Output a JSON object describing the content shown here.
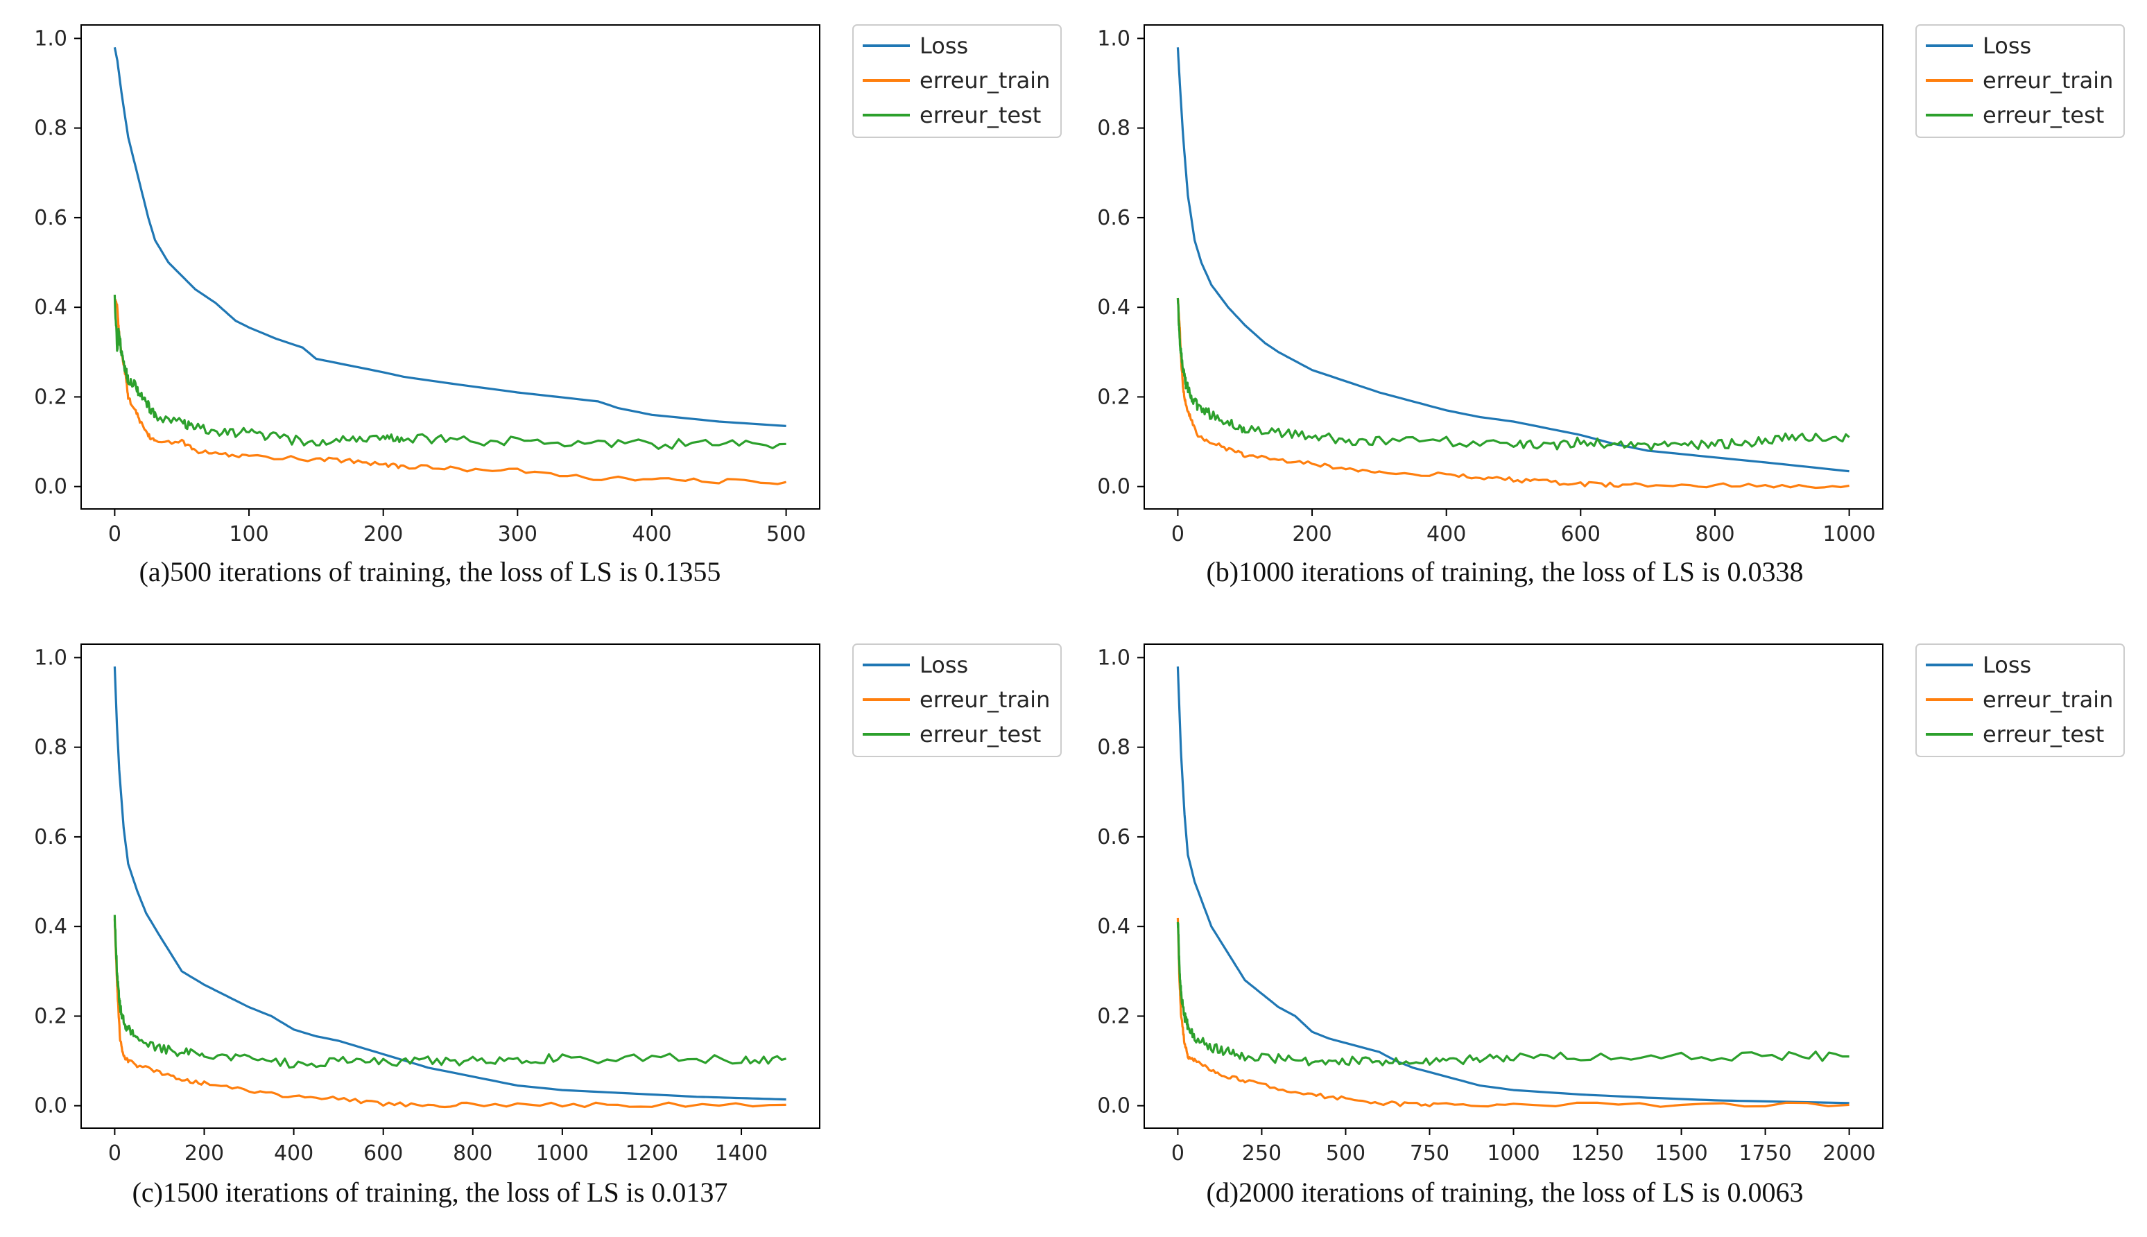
{
  "colors": {
    "loss": "#1f77b4",
    "erreur_train": "#ff7f0e",
    "erreur_test": "#2ca02c",
    "axes": "#000000",
    "legend_border": "#cccccc"
  },
  "legend_placement": "outside-top-right",
  "chart_data": [
    {
      "type": "line",
      "caption": "(a)500 iterations of training, the loss of LS is 0.1355",
      "xlim": [
        -25,
        525
      ],
      "ylim": [
        -0.05,
        1.03
      ],
      "xticks": [
        0,
        100,
        200,
        300,
        400,
        500
      ],
      "yticks": [
        0.0,
        0.2,
        0.4,
        0.6,
        0.8,
        1.0
      ],
      "grid": false,
      "series": [
        {
          "name": "Loss",
          "x": [
            0,
            2,
            5,
            10,
            15,
            20,
            25,
            30,
            40,
            50,
            60,
            75,
            90,
            100,
            120,
            140,
            150,
            175,
            200,
            215,
            250,
            300,
            330,
            360,
            375,
            400,
            450,
            500
          ],
          "y": [
            0.98,
            0.95,
            0.88,
            0.78,
            0.72,
            0.66,
            0.6,
            0.55,
            0.5,
            0.47,
            0.44,
            0.41,
            0.37,
            0.355,
            0.33,
            0.31,
            0.285,
            0.27,
            0.255,
            0.245,
            0.23,
            0.21,
            0.2,
            0.19,
            0.175,
            0.16,
            0.145,
            0.135
          ]
        },
        {
          "name": "erreur_train",
          "x": [
            0,
            2,
            3,
            5,
            8,
            10,
            15,
            20,
            25,
            30,
            50,
            60,
            80,
            100,
            150,
            175,
            200,
            215,
            250,
            300,
            350,
            400,
            450,
            500
          ],
          "y": [
            0.42,
            0.4,
            0.35,
            0.3,
            0.25,
            0.2,
            0.17,
            0.14,
            0.115,
            0.1,
            0.1,
            0.08,
            0.07,
            0.068,
            0.06,
            0.058,
            0.05,
            0.045,
            0.04,
            0.035,
            0.02,
            0.015,
            0.012,
            0.01
          ]
        },
        {
          "name": "erreur_test",
          "x": [
            0,
            2,
            3,
            5,
            8,
            10,
            15,
            20,
            25,
            30,
            50,
            60,
            80,
            100,
            120,
            150,
            175,
            200,
            215,
            250,
            300,
            350,
            400,
            450,
            500
          ],
          "y": [
            0.42,
            0.3,
            0.35,
            0.3,
            0.26,
            0.24,
            0.23,
            0.2,
            0.18,
            0.16,
            0.14,
            0.13,
            0.12,
            0.12,
            0.11,
            0.095,
            0.11,
            0.105,
            0.11,
            0.105,
            0.1,
            0.1,
            0.095,
            0.095,
            0.095
          ]
        }
      ]
    },
    {
      "type": "line",
      "caption": "(b)1000 iterations of training, the loss of LS is 0.0338",
      "xlim": [
        -50,
        1050
      ],
      "ylim": [
        -0.05,
        1.03
      ],
      "xticks": [
        0,
        200,
        400,
        600,
        800,
        1000
      ],
      "yticks": [
        0.0,
        0.2,
        0.4,
        0.6,
        0.8,
        1.0
      ],
      "grid": false,
      "series": [
        {
          "name": "Loss",
          "x": [
            0,
            3,
            8,
            15,
            25,
            35,
            50,
            75,
            100,
            130,
            150,
            175,
            200,
            250,
            300,
            350,
            400,
            450,
            500,
            550,
            600,
            650,
            700,
            800,
            900,
            1000
          ],
          "y": [
            0.98,
            0.9,
            0.78,
            0.65,
            0.55,
            0.5,
            0.45,
            0.4,
            0.36,
            0.32,
            0.3,
            0.28,
            0.26,
            0.235,
            0.21,
            0.19,
            0.17,
            0.155,
            0.145,
            0.13,
            0.115,
            0.095,
            0.08,
            0.065,
            0.05,
            0.034
          ]
        },
        {
          "name": "erreur_train",
          "x": [
            0,
            3,
            5,
            8,
            12,
            20,
            30,
            50,
            80,
            100,
            150,
            200,
            250,
            300,
            400,
            450,
            500,
            550,
            600,
            650,
            700,
            800,
            900,
            1000
          ],
          "y": [
            0.42,
            0.35,
            0.28,
            0.22,
            0.18,
            0.15,
            0.11,
            0.1,
            0.08,
            0.07,
            0.06,
            0.05,
            0.04,
            0.035,
            0.025,
            0.02,
            0.015,
            0.01,
            0.005,
            0.004,
            0.003,
            0.002,
            0.002,
            0.002
          ]
        },
        {
          "name": "erreur_test",
          "x": [
            0,
            3,
            5,
            8,
            12,
            20,
            30,
            50,
            80,
            100,
            150,
            200,
            250,
            300,
            400,
            500,
            550,
            600,
            650,
            700,
            750,
            800,
            850,
            900,
            950,
            1000
          ],
          "y": [
            0.42,
            0.32,
            0.3,
            0.26,
            0.23,
            0.2,
            0.18,
            0.16,
            0.14,
            0.13,
            0.12,
            0.11,
            0.105,
            0.1,
            0.1,
            0.095,
            0.09,
            0.1,
            0.095,
            0.09,
            0.09,
            0.095,
            0.095,
            0.11,
            0.11,
            0.11
          ]
        }
      ]
    },
    {
      "type": "line",
      "caption": "(c)1500 iterations of training, the loss of LS is 0.0137",
      "xlim": [
        -75,
        1575
      ],
      "ylim": [
        -0.05,
        1.03
      ],
      "xticks": [
        0,
        200,
        400,
        600,
        800,
        1000,
        1200,
        1400
      ],
      "yticks": [
        0.0,
        0.2,
        0.4,
        0.6,
        0.8,
        1.0
      ],
      "grid": false,
      "series": [
        {
          "name": "Loss",
          "x": [
            0,
            5,
            10,
            20,
            30,
            50,
            70,
            100,
            150,
            200,
            250,
            300,
            350,
            400,
            450,
            500,
            550,
            600,
            700,
            800,
            900,
            1000,
            1100,
            1200,
            1300,
            1400,
            1500
          ],
          "y": [
            0.98,
            0.85,
            0.75,
            0.62,
            0.54,
            0.48,
            0.43,
            0.38,
            0.3,
            0.27,
            0.245,
            0.22,
            0.2,
            0.17,
            0.155,
            0.145,
            0.13,
            0.115,
            0.085,
            0.065,
            0.045,
            0.035,
            0.03,
            0.025,
            0.02,
            0.017,
            0.014
          ]
        },
        {
          "name": "erreur_train",
          "x": [
            0,
            5,
            8,
            12,
            20,
            30,
            50,
            100,
            150,
            200,
            300,
            400,
            500,
            600,
            700,
            800,
            1000,
            1200,
            1500
          ],
          "y": [
            0.42,
            0.28,
            0.22,
            0.15,
            0.11,
            0.1,
            0.09,
            0.075,
            0.06,
            0.05,
            0.035,
            0.02,
            0.015,
            0.005,
            0.002,
            0.002,
            0.002,
            0.002,
            0.002
          ]
        },
        {
          "name": "erreur_test",
          "x": [
            0,
            5,
            8,
            12,
            20,
            30,
            50,
            100,
            150,
            200,
            300,
            400,
            500,
            600,
            700,
            800,
            900,
            1000,
            1200,
            1400,
            1500
          ],
          "y": [
            0.42,
            0.3,
            0.26,
            0.22,
            0.19,
            0.17,
            0.15,
            0.13,
            0.12,
            0.11,
            0.105,
            0.095,
            0.1,
            0.095,
            0.1,
            0.1,
            0.105,
            0.105,
            0.105,
            0.105,
            0.105
          ]
        }
      ]
    },
    {
      "type": "line",
      "caption": "(d)2000 iterations of training, the loss of LS is 0.0063",
      "xlim": [
        -100,
        2100
      ],
      "ylim": [
        -0.05,
        1.03
      ],
      "xticks": [
        0,
        250,
        500,
        750,
        1000,
        1250,
        1500,
        1750,
        2000
      ],
      "yticks": [
        0.0,
        0.2,
        0.4,
        0.6,
        0.8,
        1.0
      ],
      "grid": false,
      "series": [
        {
          "name": "Loss",
          "x": [
            0,
            5,
            10,
            20,
            30,
            50,
            75,
            100,
            150,
            200,
            250,
            300,
            350,
            400,
            450,
            500,
            600,
            650,
            700,
            800,
            900,
            1000,
            1200,
            1400,
            1600,
            1800,
            2000
          ],
          "y": [
            0.98,
            0.88,
            0.78,
            0.65,
            0.56,
            0.5,
            0.45,
            0.4,
            0.34,
            0.28,
            0.25,
            0.22,
            0.2,
            0.165,
            0.15,
            0.14,
            0.12,
            0.1,
            0.085,
            0.065,
            0.045,
            0.035,
            0.025,
            0.018,
            0.012,
            0.009,
            0.006
          ]
        },
        {
          "name": "erreur_train",
          "x": [
            0,
            5,
            10,
            20,
            30,
            50,
            100,
            150,
            200,
            300,
            400,
            500,
            600,
            700,
            800,
            1000,
            1500,
            2000
          ],
          "y": [
            0.42,
            0.28,
            0.2,
            0.14,
            0.11,
            0.1,
            0.08,
            0.065,
            0.055,
            0.04,
            0.025,
            0.015,
            0.005,
            0.003,
            0.002,
            0.002,
            0.002,
            0.002
          ]
        },
        {
          "name": "erreur_test",
          "x": [
            0,
            5,
            10,
            20,
            30,
            50,
            100,
            150,
            200,
            300,
            400,
            500,
            600,
            700,
            800,
            900,
            1000,
            1200,
            1500,
            1800,
            2000
          ],
          "y": [
            0.42,
            0.3,
            0.25,
            0.2,
            0.18,
            0.15,
            0.13,
            0.12,
            0.11,
            0.105,
            0.1,
            0.1,
            0.095,
            0.1,
            0.1,
            0.105,
            0.11,
            0.11,
            0.11,
            0.11,
            0.11
          ]
        }
      ]
    }
  ]
}
